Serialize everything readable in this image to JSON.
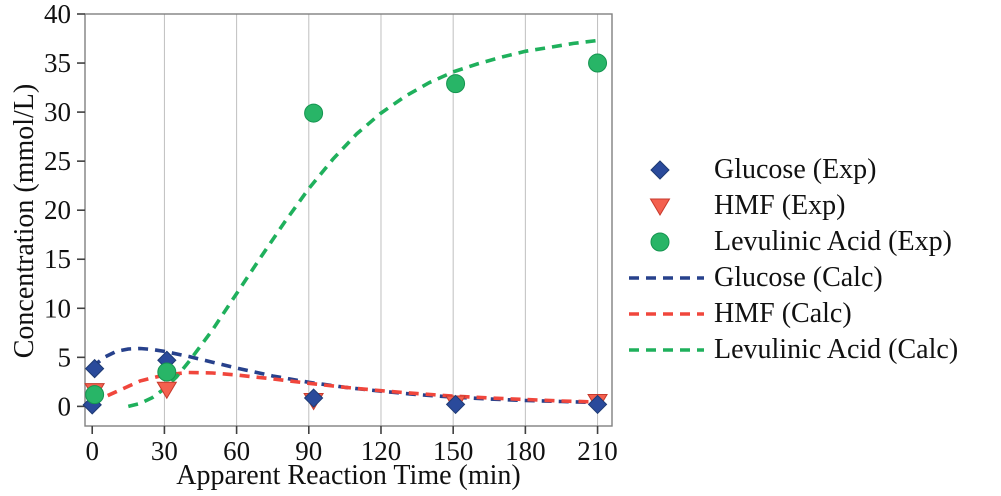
{
  "chart_data": {
    "type": "scatter",
    "title": "",
    "xlabel": "Apparent Reaction Time (min)",
    "ylabel": "Concentration (mmol/L)",
    "xlim": [
      -3,
      216
    ],
    "ylim": [
      -2,
      40
    ],
    "xticks": [
      0,
      30,
      60,
      90,
      120,
      150,
      180,
      210
    ],
    "yticks": [
      0,
      5,
      10,
      15,
      20,
      25,
      30,
      35,
      40
    ],
    "grid": "vertical-only",
    "legend_position": "right",
    "series": [
      {
        "name": "Glucose (Exp)",
        "kind": "scatter",
        "marker": "diamond",
        "color": "#2A4A9B",
        "edge": "#1E3A73",
        "points": [
          [
            0,
            0.15
          ],
          [
            1,
            3.85
          ],
          [
            31,
            4.7
          ],
          [
            92,
            0.85
          ],
          [
            151,
            0.2
          ],
          [
            210,
            0.2
          ]
        ]
      },
      {
        "name": "HMF (Exp)",
        "kind": "scatter",
        "marker": "triangle-down",
        "color": "#F4604F",
        "edge": "#C73A2C",
        "points": [
          [
            1,
            1.6
          ],
          [
            31,
            1.75
          ],
          [
            92,
            0.6
          ],
          [
            151,
            0.35
          ],
          [
            210,
            0.5
          ]
        ]
      },
      {
        "name": "Levulinic Acid (Exp)",
        "kind": "scatter",
        "marker": "circle",
        "color": "#28B567",
        "edge": "#159450",
        "points": [
          [
            1,
            1.2
          ],
          [
            31,
            3.5
          ],
          [
            92,
            29.9
          ],
          [
            151,
            32.9
          ],
          [
            210,
            35.0
          ]
        ]
      },
      {
        "name": "Glucose (Calc)",
        "kind": "line",
        "dash": true,
        "color": "#27418C",
        "points": [
          [
            0,
            4.0
          ],
          [
            5,
            5.0
          ],
          [
            10,
            5.6
          ],
          [
            15,
            5.85
          ],
          [
            20,
            5.9
          ],
          [
            25,
            5.8
          ],
          [
            30,
            5.6
          ],
          [
            40,
            5.1
          ],
          [
            50,
            4.5
          ],
          [
            60,
            3.9
          ],
          [
            75,
            3.1
          ],
          [
            90,
            2.45
          ],
          [
            105,
            1.95
          ],
          [
            120,
            1.55
          ],
          [
            135,
            1.2
          ],
          [
            150,
            0.95
          ],
          [
            165,
            0.75
          ],
          [
            180,
            0.6
          ],
          [
            195,
            0.5
          ],
          [
            210,
            0.4
          ]
        ]
      },
      {
        "name": "HMF (Calc)",
        "kind": "line",
        "dash": true,
        "color": "#F0463C",
        "points": [
          [
            0,
            0.4
          ],
          [
            10,
            1.5
          ],
          [
            20,
            2.6
          ],
          [
            30,
            3.2
          ],
          [
            40,
            3.45
          ],
          [
            50,
            3.4
          ],
          [
            60,
            3.2
          ],
          [
            75,
            2.8
          ],
          [
            90,
            2.35
          ],
          [
            105,
            1.95
          ],
          [
            120,
            1.6
          ],
          [
            135,
            1.3
          ],
          [
            150,
            1.05
          ],
          [
            165,
            0.85
          ],
          [
            180,
            0.7
          ],
          [
            195,
            0.55
          ],
          [
            210,
            0.45
          ]
        ]
      },
      {
        "name": "Levulinic Acid (Calc)",
        "kind": "line",
        "dash": true,
        "color": "#1FB05C",
        "points": [
          [
            15,
            0.0
          ],
          [
            20,
            0.3
          ],
          [
            25,
            0.9
          ],
          [
            30,
            1.8
          ],
          [
            35,
            3.0
          ],
          [
            40,
            4.5
          ],
          [
            50,
            7.8
          ],
          [
            60,
            11.5
          ],
          [
            70,
            15.2
          ],
          [
            80,
            18.8
          ],
          [
            90,
            22.2
          ],
          [
            100,
            25.2
          ],
          [
            110,
            27.8
          ],
          [
            120,
            29.9
          ],
          [
            130,
            31.6
          ],
          [
            140,
            33.0
          ],
          [
            150,
            34.1
          ],
          [
            160,
            34.9
          ],
          [
            170,
            35.6
          ],
          [
            180,
            36.2
          ],
          [
            190,
            36.6
          ],
          [
            200,
            37.0
          ],
          [
            210,
            37.3
          ]
        ]
      }
    ]
  }
}
